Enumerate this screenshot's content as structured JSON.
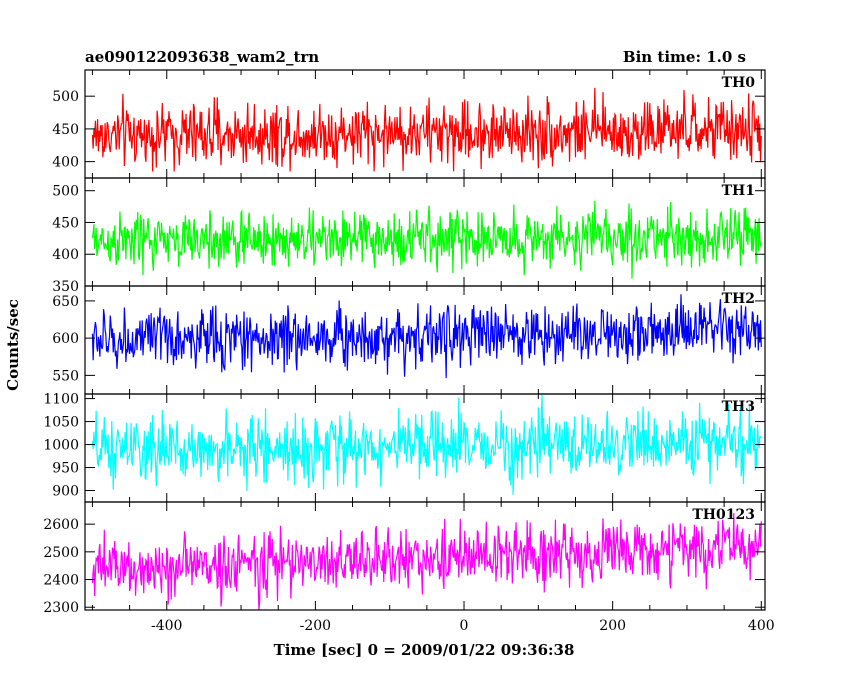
{
  "header": {
    "left_title": "ae090122093638_wam2_trn",
    "right_title": "Bin time: 1.0 s"
  },
  "chart_data": {
    "type": "line",
    "xlabel": "Time [sec] 0 = 2009/01/22 09:36:38",
    "ylabel": "Counts/sec",
    "xlim": [
      -510,
      405
    ],
    "x_range": [
      -500,
      400
    ],
    "x_ticks": [
      -400,
      -200,
      0,
      200,
      400
    ],
    "series": [
      {
        "name": "TH0",
        "color": "#ff0000",
        "ylim": [
          375,
          540
        ],
        "y_ticks": [
          400,
          450,
          500
        ],
        "mean_start": 440,
        "mean_end": 448,
        "sigma": 24,
        "min_observed": 385,
        "max_observed": 535
      },
      {
        "name": "TH1",
        "color": "#00ff00",
        "ylim": [
          350,
          520
        ],
        "y_ticks": [
          350,
          400,
          450,
          500
        ],
        "mean_start": 420,
        "mean_end": 428,
        "sigma": 22,
        "min_observed": 345,
        "max_observed": 520
      },
      {
        "name": "TH2",
        "color": "#0000ff",
        "ylim": [
          525,
          670
        ],
        "y_ticks": [
          550,
          600,
          650
        ],
        "mean_start": 597,
        "mean_end": 610,
        "sigma": 20,
        "min_observed": 530,
        "max_observed": 670
      },
      {
        "name": "TH3",
        "color": "#00ffff",
        "ylim": [
          875,
          1110
        ],
        "y_ticks": [
          900,
          950,
          1000,
          1050,
          1100
        ],
        "mean_start": 985,
        "mean_end": 1005,
        "sigma": 35,
        "min_observed": 880,
        "max_observed": 1110
      },
      {
        "name": "TH0123",
        "color": "#ff00ff",
        "ylim": [
          2290,
          2680
        ],
        "y_ticks": [
          2300,
          2400,
          2500,
          2600
        ],
        "mean_start": 2435,
        "mean_end": 2520,
        "sigma": 55,
        "min_observed": 2290,
        "max_observed": 2680
      }
    ]
  }
}
